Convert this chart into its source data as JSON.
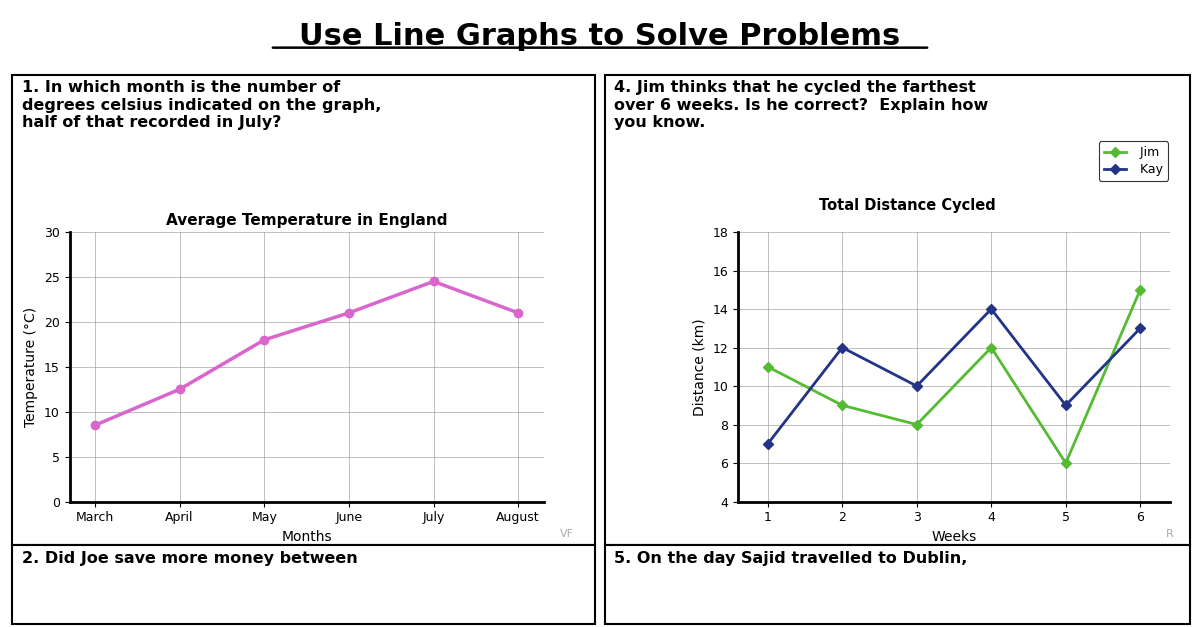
{
  "title": "Use Line Graphs to Solve Problems",
  "title_fontsize": 22,
  "bg_color": "#ffffff",
  "q1_text": "1. In which month is the number of\ndegrees celsius indicated on the graph,\nhalf of that recorded in July?",
  "q4_text": "4. Jim thinks that he cycled the farthest\nover 6 weeks. Is he correct?  Explain how\nyou know.",
  "q2_text": "2. Did Joe save more money between",
  "q5_text": "5. On the day Sajid travelled to Dublin,",
  "chart1_title": "Average Temperature in England",
  "chart1_xlabel": "Months",
  "chart1_ylabel": "Temperature (°C)",
  "chart1_x_labels": [
    "March",
    "April",
    "May",
    "June",
    "July",
    "August"
  ],
  "chart1_y_values": [
    8.5,
    12.5,
    18.0,
    21.0,
    24.5,
    21.0
  ],
  "chart1_ylim": [
    0,
    30
  ],
  "chart1_yticks": [
    0,
    5,
    10,
    15,
    20,
    25,
    30
  ],
  "chart1_color": "#d966cc",
  "chart1_marker": "o",
  "chart1_linewidth": 2.5,
  "chart2_title": "Total Distance Cycled",
  "chart2_xlabel": "Weeks",
  "chart2_ylabel": "Distance (km)",
  "chart2_x_labels": [
    1,
    2,
    3,
    4,
    5,
    6
  ],
  "chart2_jim_values": [
    11,
    9,
    8,
    12,
    6,
    15
  ],
  "chart2_kay_values": [
    7,
    12,
    10,
    14,
    9,
    13
  ],
  "chart2_ylim": [
    4,
    18
  ],
  "chart2_yticks": [
    4,
    6,
    8,
    10,
    12,
    14,
    16,
    18
  ],
  "chart2_jim_color": "#55bb33",
  "chart2_kay_color": "#223388",
  "chart2_linewidth": 2.0,
  "chart2_marker": "D",
  "watermark1": "VF",
  "watermark2": "R",
  "font_family": "DejaVu Sans"
}
